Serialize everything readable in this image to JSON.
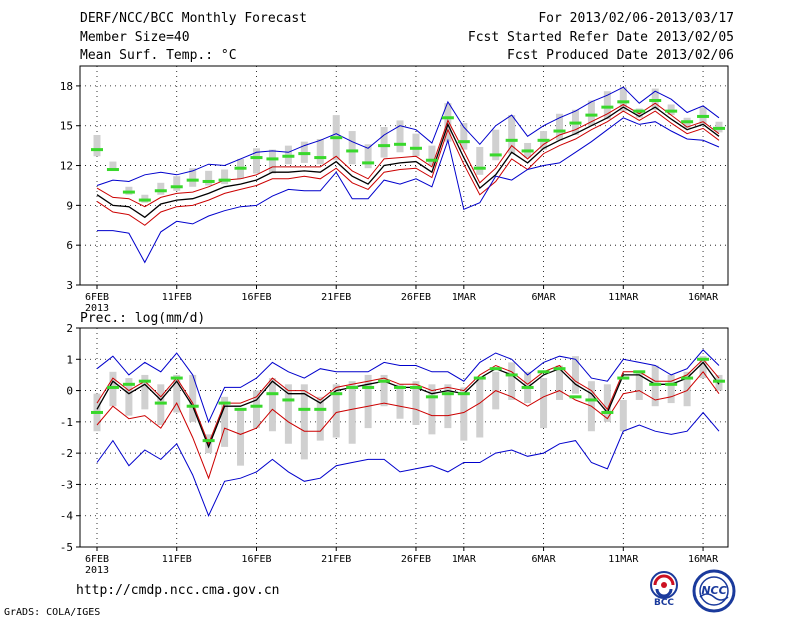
{
  "header": {
    "title": "DERF/NCC/BCC Monthly Forecast",
    "member_size": "Member Size=40",
    "variable": "Mean Surf. Temp.: °C",
    "period": "For 2013/02/06-2013/03/17",
    "started": "Fcst Started Refer Date 2013/02/05",
    "produced": "Fcst Produced Date 2013/02/06"
  },
  "footer": {
    "url": "http://cmdp.ncc.cma.gov.cn",
    "credit": "GrADS: COLA/IGES",
    "logo1_text": "BCC",
    "logo2_text": "NCC"
  },
  "colors": {
    "box": "#d0d0d0",
    "median": "#39d82c",
    "blue": "#0000cc",
    "red": "#cc0000",
    "black": "#000000",
    "grid": "#000000"
  },
  "chart_data": [
    {
      "type": "line",
      "name": "temperature",
      "title": "Mean Surf. Temp.: °C",
      "ylim": [
        3,
        19.5
      ],
      "yticks": [
        3,
        6,
        9,
        12,
        15,
        18
      ],
      "xrange": [
        0,
        40
      ],
      "xticks": [
        {
          "x": 0,
          "label": "6FEB",
          "sub": "2013"
        },
        {
          "x": 5,
          "label": "11FEB"
        },
        {
          "x": 10,
          "label": "16FEB"
        },
        {
          "x": 15,
          "label": "21FEB"
        },
        {
          "x": 20,
          "label": "26FEB"
        },
        {
          "x": 23,
          "label": "1MAR"
        },
        {
          "x": 28,
          "label": "6MAR"
        },
        {
          "x": 33,
          "label": "11MAR"
        },
        {
          "x": 38,
          "label": "16MAR"
        }
      ],
      "box_low": [
        12.7,
        11.6,
        9.8,
        9.2,
        9.8,
        10.1,
        10.4,
        10.5,
        10.6,
        11.0,
        11.4,
        11.4,
        12.1,
        12.2,
        12.1,
        12.4,
        12.1,
        11.8,
        12.6,
        13.0,
        12.7,
        12.0,
        13.8,
        13.2,
        11.3,
        12.4,
        12.9,
        12.6,
        13.2,
        13.9,
        14.3,
        15.0,
        15.5,
        16.1,
        15.6,
        16.2,
        15.8,
        14.8,
        15.1,
        14.5
      ],
      "box_high": [
        14.3,
        12.3,
        10.4,
        9.8,
        10.7,
        11.2,
        11.8,
        11.6,
        11.7,
        12.5,
        13.3,
        13.2,
        13.5,
        13.8,
        14.0,
        15.8,
        14.6,
        13.6,
        14.9,
        15.4,
        14.4,
        13.5,
        16.7,
        15.2,
        13.4,
        14.7,
        15.8,
        13.7,
        14.6,
        15.9,
        16.2,
        16.9,
        17.6,
        17.9,
        16.3,
        17.8,
        16.6,
        15.6,
        16.4,
        15.3
      ],
      "median": [
        13.2,
        11.7,
        10.0,
        9.4,
        10.1,
        10.4,
        10.9,
        10.8,
        10.9,
        11.8,
        12.6,
        12.5,
        12.7,
        12.9,
        12.6,
        14.1,
        13.1,
        12.2,
        13.5,
        13.6,
        13.3,
        12.4,
        15.6,
        13.8,
        11.8,
        12.8,
        13.9,
        13.1,
        13.9,
        14.6,
        15.2,
        15.8,
        16.4,
        16.8,
        16.1,
        16.9,
        16.1,
        15.3,
        15.7,
        14.8
      ],
      "series": [
        {
          "name": "max",
          "color": "blue",
          "values": [
            10.5,
            10.9,
            10.8,
            11.3,
            11.5,
            11.3,
            11.6,
            12.1,
            12.0,
            12.5,
            13.0,
            13.1,
            13.0,
            13.5,
            13.9,
            14.4,
            13.8,
            13.3,
            14.3,
            15.0,
            14.7,
            13.7,
            16.8,
            14.9,
            13.6,
            15.0,
            15.8,
            14.2,
            15.0,
            15.6,
            16.1,
            16.8,
            17.3,
            17.9,
            16.7,
            17.6,
            17.0,
            16.0,
            16.5,
            15.6
          ]
        },
        {
          "name": "upper",
          "color": "red",
          "values": [
            10.3,
            9.6,
            9.5,
            8.9,
            9.6,
            9.9,
            10.0,
            10.4,
            10.9,
            11.0,
            11.3,
            11.9,
            11.9,
            11.9,
            11.9,
            12.7,
            11.6,
            11.0,
            12.5,
            12.6,
            12.7,
            11.9,
            15.4,
            13.1,
            10.7,
            11.8,
            13.5,
            12.5,
            13.6,
            14.3,
            14.7,
            15.3,
            15.9,
            16.6,
            15.9,
            16.7,
            15.8,
            14.9,
            15.3,
            14.4
          ]
        },
        {
          "name": "mean",
          "color": "black",
          "values": [
            9.8,
            9.0,
            8.9,
            8.1,
            9.1,
            9.4,
            9.5,
            9.9,
            10.4,
            10.6,
            10.9,
            11.5,
            11.5,
            11.6,
            11.5,
            12.3,
            11.2,
            10.6,
            12.0,
            12.2,
            12.3,
            11.5,
            15.1,
            12.6,
            10.3,
            11.3,
            13.0,
            12.2,
            13.3,
            13.9,
            14.4,
            15.0,
            15.6,
            16.4,
            15.7,
            16.4,
            15.5,
            14.7,
            15.1,
            14.2
          ]
        },
        {
          "name": "lower",
          "color": "red",
          "values": [
            9.3,
            8.5,
            8.3,
            7.5,
            8.5,
            8.9,
            9.0,
            9.4,
            9.9,
            10.2,
            10.5,
            11.0,
            11.0,
            11.2,
            11.0,
            11.8,
            10.7,
            10.2,
            11.5,
            11.7,
            11.8,
            11.1,
            14.7,
            12.1,
            9.8,
            10.8,
            12.5,
            11.7,
            12.9,
            13.5,
            14.0,
            14.7,
            15.3,
            16.1,
            15.4,
            16.1,
            15.2,
            14.4,
            14.8,
            13.9
          ]
        },
        {
          "name": "min",
          "color": "blue",
          "values": [
            7.1,
            7.1,
            6.9,
            4.7,
            7.0,
            7.8,
            7.6,
            8.2,
            8.6,
            8.9,
            9.0,
            9.7,
            10.2,
            10.1,
            10.1,
            11.5,
            9.5,
            9.5,
            10.9,
            10.6,
            11.0,
            10.4,
            13.9,
            8.7,
            9.2,
            11.2,
            10.9,
            11.7,
            12.0,
            12.2,
            13.0,
            13.8,
            14.7,
            15.6,
            15.1,
            15.3,
            14.6,
            14.0,
            13.9,
            13.4
          ]
        }
      ]
    },
    {
      "type": "line",
      "name": "precipitation",
      "title": "Prec.: log(mm/d)",
      "ylim": [
        -5,
        2
      ],
      "yticks": [
        -5,
        -4,
        -3,
        -2,
        -1,
        0,
        1,
        2
      ],
      "xrange": [
        0,
        40
      ],
      "xticks": [
        {
          "x": 0,
          "label": "6FEB",
          "sub": "2013"
        },
        {
          "x": 5,
          "label": "11FEB"
        },
        {
          "x": 10,
          "label": "16FEB"
        },
        {
          "x": 15,
          "label": "21FEB"
        },
        {
          "x": 20,
          "label": "26FEB"
        },
        {
          "x": 23,
          "label": "1MAR"
        },
        {
          "x": 28,
          "label": "6MAR"
        },
        {
          "x": 33,
          "label": "11MAR"
        },
        {
          "x": 38,
          "label": "16MAR"
        }
      ],
      "box_low": [
        -1.3,
        -0.5,
        -0.8,
        -0.6,
        -1.1,
        -0.7,
        -1.0,
        -2.0,
        -1.8,
        -2.4,
        -1.2,
        -1.3,
        -1.7,
        -2.2,
        -1.6,
        -1.5,
        -1.7,
        -1.2,
        -0.5,
        -0.9,
        -1.1,
        -1.4,
        -1.2,
        -1.6,
        -1.5,
        -0.6,
        -0.3,
        -0.4,
        -1.2,
        -0.3,
        -0.1,
        -1.3,
        -1.0,
        -1.3,
        -0.3,
        -0.5,
        -0.4,
        -0.5,
        0.4,
        0.0
      ],
      "box_high": [
        -0.1,
        0.6,
        0.4,
        0.5,
        0.2,
        0.5,
        0.5,
        -1.4,
        -0.2,
        -0.6,
        0.0,
        0.4,
        0.2,
        0.2,
        -0.2,
        0.2,
        0.3,
        0.5,
        0.5,
        0.2,
        0.3,
        0.2,
        0.2,
        0.1,
        0.4,
        0.6,
        0.9,
        0.6,
        0.4,
        0.8,
        1.1,
        0.3,
        0.2,
        -0.3,
        0.6,
        0.8,
        0.5,
        0.6,
        1.1,
        0.5
      ],
      "median": [
        -0.7,
        0.1,
        0.2,
        0.3,
        -0.4,
        0.4,
        -0.5,
        -1.6,
        -0.4,
        -0.6,
        -0.5,
        -0.1,
        -0.3,
        -0.6,
        -0.6,
        -0.1,
        0.1,
        0.1,
        0.3,
        0.1,
        0.1,
        -0.2,
        -0.1,
        -0.1,
        0.4,
        0.7,
        0.5,
        0.1,
        0.6,
        0.7,
        -0.2,
        -0.3,
        -0.7,
        0.4,
        0.6,
        0.2,
        0.2,
        0.4,
        1.0,
        0.3
      ],
      "series": [
        {
          "name": "max",
          "color": "blue",
          "values": [
            0.7,
            1.1,
            0.5,
            0.9,
            0.6,
            1.2,
            0.5,
            -1.0,
            0.1,
            0.1,
            0.4,
            0.9,
            0.6,
            0.4,
            0.7,
            0.6,
            0.6,
            0.6,
            0.9,
            0.8,
            0.8,
            0.6,
            0.6,
            0.3,
            0.9,
            1.2,
            1.0,
            0.5,
            0.9,
            1.1,
            1.0,
            0.4,
            0.3,
            1.0,
            0.9,
            0.8,
            0.5,
            0.7,
            1.3,
            0.8
          ]
        },
        {
          "name": "upper",
          "color": "red",
          "values": [
            -0.4,
            0.4,
            0.0,
            0.3,
            -0.2,
            0.4,
            -0.4,
            -1.7,
            -0.4,
            -0.4,
            -0.2,
            0.4,
            0.0,
            0.0,
            -0.3,
            0.1,
            0.2,
            0.3,
            0.4,
            0.2,
            0.2,
            0.0,
            0.1,
            0.0,
            0.5,
            0.8,
            0.6,
            0.2,
            0.6,
            0.8,
            0.3,
            0.0,
            -0.6,
            0.6,
            0.6,
            0.3,
            0.3,
            0.5,
            1.0,
            0.4
          ]
        },
        {
          "name": "mean",
          "color": "black",
          "values": [
            -0.6,
            0.3,
            -0.1,
            0.2,
            -0.3,
            0.3,
            -0.5,
            -1.8,
            -0.5,
            -0.5,
            -0.3,
            0.3,
            -0.1,
            -0.1,
            -0.4,
            0.0,
            0.1,
            0.2,
            0.3,
            0.1,
            0.1,
            -0.1,
            0.0,
            -0.1,
            0.4,
            0.7,
            0.5,
            0.1,
            0.5,
            0.7,
            0.2,
            -0.1,
            -0.7,
            0.5,
            0.5,
            0.2,
            0.2,
            0.4,
            0.9,
            0.2
          ]
        },
        {
          "name": "lower",
          "color": "red",
          "values": [
            -1.1,
            -0.5,
            -0.9,
            -0.8,
            -1.2,
            -0.4,
            -1.5,
            -2.8,
            -1.2,
            -1.4,
            -1.2,
            -0.6,
            -1.0,
            -1.3,
            -1.3,
            -0.7,
            -0.6,
            -0.5,
            -0.4,
            -0.5,
            -0.6,
            -0.8,
            -0.8,
            -0.7,
            -0.4,
            0.0,
            -0.2,
            -0.5,
            -0.2,
            0.0,
            -0.3,
            -0.5,
            -0.9,
            -0.1,
            0.0,
            -0.3,
            -0.2,
            0.0,
            0.6,
            -0.1
          ]
        },
        {
          "name": "min",
          "color": "blue",
          "values": [
            -2.3,
            -1.6,
            -2.4,
            -1.9,
            -2.2,
            -1.7,
            -2.7,
            -4.0,
            -2.9,
            -2.8,
            -2.6,
            -2.2,
            -2.6,
            -2.9,
            -2.8,
            -2.4,
            -2.3,
            -2.2,
            -2.2,
            -2.6,
            -2.5,
            -2.4,
            -2.6,
            -2.3,
            -2.3,
            -2.0,
            -1.9,
            -2.1,
            -2.0,
            -1.7,
            -1.6,
            -2.3,
            -2.5,
            -1.3,
            -1.1,
            -1.3,
            -1.4,
            -1.3,
            -0.7,
            -1.3
          ]
        }
      ]
    }
  ]
}
